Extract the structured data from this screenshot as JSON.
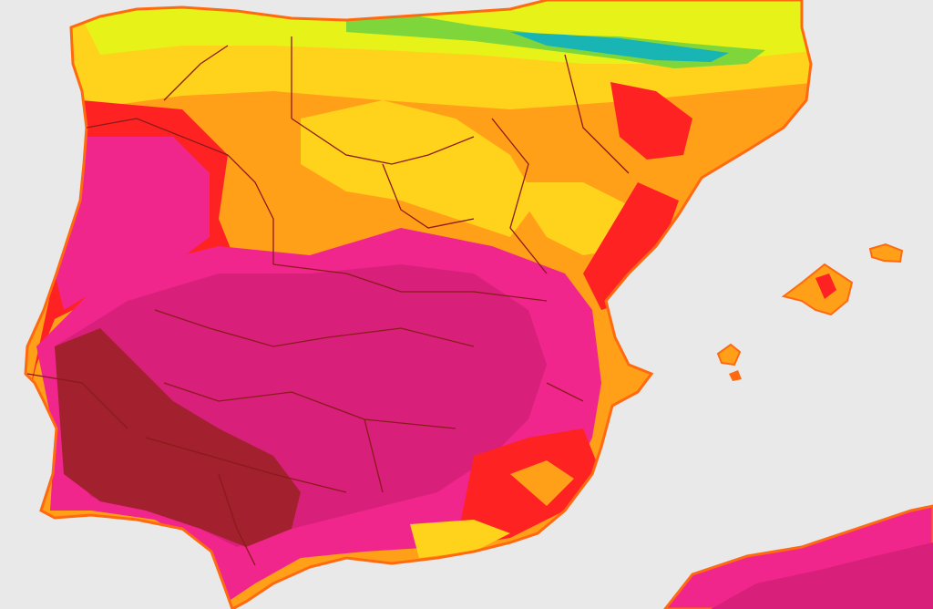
{
  "map": {
    "type": "temperature-heatmap",
    "region": "iberian-peninsula",
    "legend": null,
    "colors": {
      "sea": "#e9e9e9",
      "cold": "#19b4b4",
      "cool": "#7ed63a",
      "mild": "#e6f218",
      "warm": "#ffd21c",
      "warmer": "#ffa018",
      "hot": "#ff6a10",
      "very_hot": "#ff2222",
      "extreme": "#f0268c",
      "extreme_plus": "#d8207a",
      "max": "#a3202e",
      "border": "#8b1a1a"
    }
  }
}
